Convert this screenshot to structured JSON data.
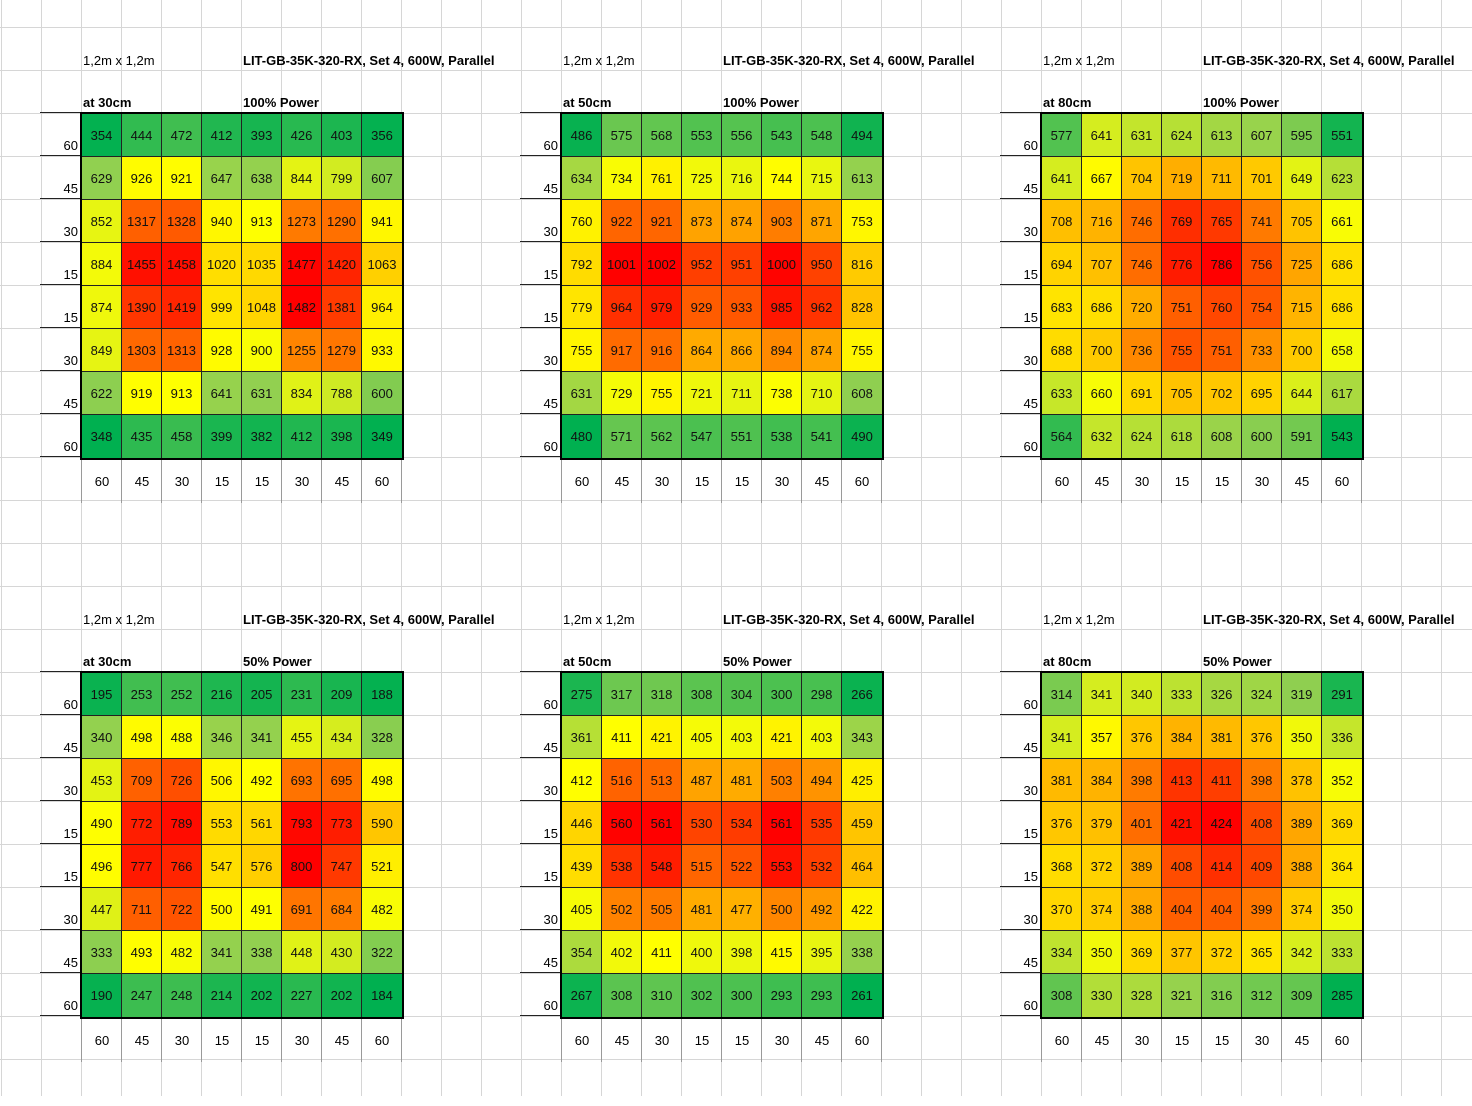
{
  "chart_data": [
    {
      "type": "heatmap",
      "size_label": "1,2m x 1,2m",
      "model_label": "LIT-GB-35K-320-RX, Set 4, 600W, Parallel",
      "distance_label": "at 30cm",
      "power_label": "100% Power",
      "row_labels": [
        "60",
        "45",
        "30",
        "15",
        "15",
        "30",
        "45",
        "60"
      ],
      "col_labels": [
        "60",
        "45",
        "30",
        "15",
        "15",
        "30",
        "45",
        "60"
      ],
      "values": [
        [
          354,
          444,
          472,
          412,
          393,
          426,
          403,
          356
        ],
        [
          629,
          926,
          921,
          647,
          638,
          844,
          799,
          607
        ],
        [
          852,
          1317,
          1328,
          940,
          913,
          1273,
          1290,
          941
        ],
        [
          884,
          1455,
          1458,
          1020,
          1035,
          1477,
          1420,
          1063
        ],
        [
          874,
          1390,
          1419,
          999,
          1048,
          1482,
          1381,
          964
        ],
        [
          849,
          1303,
          1313,
          928,
          900,
          1255,
          1279,
          933
        ],
        [
          622,
          919,
          913,
          641,
          631,
          834,
          788,
          600
        ],
        [
          348,
          435,
          458,
          399,
          382,
          412,
          398,
          349
        ]
      ]
    },
    {
      "type": "heatmap",
      "size_label": "1,2m x 1,2m",
      "model_label": "LIT-GB-35K-320-RX, Set 4, 600W, Parallel",
      "distance_label": "at 50cm",
      "power_label": "100% Power",
      "row_labels": [
        "60",
        "45",
        "30",
        "15",
        "15",
        "30",
        "45",
        "60"
      ],
      "col_labels": [
        "60",
        "45",
        "30",
        "15",
        "15",
        "30",
        "45",
        "60"
      ],
      "values": [
        [
          486,
          575,
          568,
          553,
          556,
          543,
          548,
          494
        ],
        [
          634,
          734,
          761,
          725,
          716,
          744,
          715,
          613
        ],
        [
          760,
          922,
          921,
          873,
          874,
          903,
          871,
          753
        ],
        [
          792,
          1001,
          1002,
          952,
          951,
          1000,
          950,
          816
        ],
        [
          779,
          964,
          979,
          929,
          933,
          985,
          962,
          828
        ],
        [
          755,
          917,
          916,
          864,
          866,
          894,
          874,
          755
        ],
        [
          631,
          729,
          755,
          721,
          711,
          738,
          710,
          608
        ],
        [
          480,
          571,
          562,
          547,
          551,
          538,
          541,
          490
        ]
      ]
    },
    {
      "type": "heatmap",
      "size_label": "1,2m x 1,2m",
      "model_label": "LIT-GB-35K-320-RX, Set 4, 600W, Parallel",
      "distance_label": "at 80cm",
      "power_label": "100% Power",
      "row_labels": [
        "60",
        "45",
        "30",
        "15",
        "15",
        "30",
        "45",
        "60"
      ],
      "col_labels": [
        "60",
        "45",
        "30",
        "15",
        "15",
        "30",
        "45",
        "60"
      ],
      "values": [
        [
          577,
          641,
          631,
          624,
          613,
          607,
          595,
          551
        ],
        [
          641,
          667,
          704,
          719,
          711,
          701,
          649,
          623
        ],
        [
          708,
          716,
          746,
          769,
          765,
          741,
          705,
          661
        ],
        [
          694,
          707,
          746,
          776,
          786,
          756,
          725,
          686
        ],
        [
          683,
          686,
          720,
          751,
          760,
          754,
          715,
          686
        ],
        [
          688,
          700,
          736,
          755,
          751,
          733,
          700,
          658
        ],
        [
          633,
          660,
          691,
          705,
          702,
          695,
          644,
          617
        ],
        [
          564,
          632,
          624,
          618,
          608,
          600,
          591,
          543
        ]
      ]
    },
    {
      "type": "heatmap",
      "size_label": "1,2m x 1,2m",
      "model_label": "LIT-GB-35K-320-RX, Set 4, 600W, Parallel",
      "distance_label": "at 30cm",
      "power_label": "50% Power",
      "row_labels": [
        "60",
        "45",
        "30",
        "15",
        "15",
        "30",
        "45",
        "60"
      ],
      "col_labels": [
        "60",
        "45",
        "30",
        "15",
        "15",
        "30",
        "45",
        "60"
      ],
      "values": [
        [
          195,
          253,
          252,
          216,
          205,
          231,
          209,
          188
        ],
        [
          340,
          498,
          488,
          346,
          341,
          455,
          434,
          328
        ],
        [
          453,
          709,
          726,
          506,
          492,
          693,
          695,
          498
        ],
        [
          490,
          772,
          789,
          553,
          561,
          793,
          773,
          590
        ],
        [
          496,
          777,
          766,
          547,
          576,
          800,
          747,
          521
        ],
        [
          447,
          711,
          722,
          500,
          491,
          691,
          684,
          482
        ],
        [
          333,
          493,
          482,
          341,
          338,
          448,
          430,
          322
        ],
        [
          190,
          247,
          248,
          214,
          202,
          227,
          202,
          184
        ]
      ]
    },
    {
      "type": "heatmap",
      "size_label": "1,2m x 1,2m",
      "model_label": "LIT-GB-35K-320-RX, Set 4, 600W, Parallel",
      "distance_label": "at 50cm",
      "power_label": "50% Power",
      "row_labels": [
        "60",
        "45",
        "30",
        "15",
        "15",
        "30",
        "45",
        "60"
      ],
      "col_labels": [
        "60",
        "45",
        "30",
        "15",
        "15",
        "30",
        "45",
        "60"
      ],
      "values": [
        [
          275,
          317,
          318,
          308,
          304,
          300,
          298,
          266
        ],
        [
          361,
          411,
          421,
          405,
          403,
          421,
          403,
          343
        ],
        [
          412,
          516,
          513,
          487,
          481,
          503,
          494,
          425
        ],
        [
          446,
          560,
          561,
          530,
          534,
          561,
          535,
          459
        ],
        [
          439,
          538,
          548,
          515,
          522,
          553,
          532,
          464
        ],
        [
          405,
          502,
          505,
          481,
          477,
          500,
          492,
          422
        ],
        [
          354,
          402,
          411,
          400,
          398,
          415,
          395,
          338
        ],
        [
          267,
          308,
          310,
          302,
          300,
          293,
          293,
          261
        ]
      ]
    },
    {
      "type": "heatmap",
      "size_label": "1,2m x 1,2m",
      "model_label": "LIT-GB-35K-320-RX, Set 4, 600W, Parallel",
      "distance_label": "at 80cm",
      "power_label": "50% Power",
      "row_labels": [
        "60",
        "45",
        "30",
        "15",
        "15",
        "30",
        "45",
        "60"
      ],
      "col_labels": [
        "60",
        "45",
        "30",
        "15",
        "15",
        "30",
        "45",
        "60"
      ],
      "values": [
        [
          314,
          341,
          340,
          333,
          326,
          324,
          319,
          291
        ],
        [
          341,
          357,
          376,
          384,
          381,
          376,
          350,
          336
        ],
        [
          381,
          384,
          398,
          413,
          411,
          398,
          378,
          352
        ],
        [
          376,
          379,
          401,
          421,
          424,
          408,
          389,
          369
        ],
        [
          368,
          372,
          389,
          408,
          414,
          409,
          388,
          364
        ],
        [
          370,
          374,
          388,
          404,
          404,
          399,
          374,
          350
        ],
        [
          334,
          350,
          369,
          377,
          372,
          365,
          342,
          333
        ],
        [
          308,
          330,
          328,
          321,
          316,
          312,
          309,
          285
        ]
      ]
    }
  ],
  "colors": {
    "low": "#00b050",
    "mid_low": "#92d050",
    "mid": "#ffff00",
    "mid_high": "#ffa500",
    "high": "#ff0000"
  }
}
